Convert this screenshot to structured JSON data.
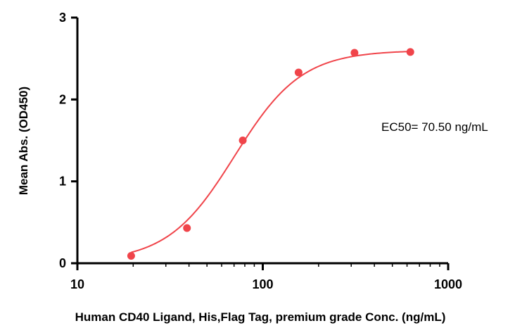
{
  "chart_data": {
    "type": "scatter",
    "title": "",
    "xlabel": "Human CD40 Ligand, His,Flag Tag, premium grade Conc. (ng/mL)",
    "ylabel": "Mean Abs. (OD450)",
    "x_scale": "log",
    "xlim": [
      10,
      1000
    ],
    "ylim": [
      0,
      3
    ],
    "x_ticks": [
      10,
      100,
      1000
    ],
    "x_tick_labels": [
      "10",
      "100",
      "1000"
    ],
    "y_ticks": [
      0,
      1,
      2,
      3
    ],
    "y_tick_labels": [
      "0",
      "1",
      "2",
      "3"
    ],
    "grid": false,
    "series": [
      {
        "x": [
          19.5,
          39,
          78,
          156,
          312.5,
          625
        ],
        "y": [
          0.09,
          0.43,
          1.5,
          2.33,
          2.57,
          2.58
        ]
      }
    ],
    "fit": {
      "type": "4PL",
      "bottom": 0.02,
      "top": 2.6,
      "ec50": 70.5,
      "hill": 2.4
    },
    "annotation": "EC50= 70.50 ng/mL",
    "colors": {
      "series": "#f0444a",
      "axis": "#000000"
    }
  }
}
